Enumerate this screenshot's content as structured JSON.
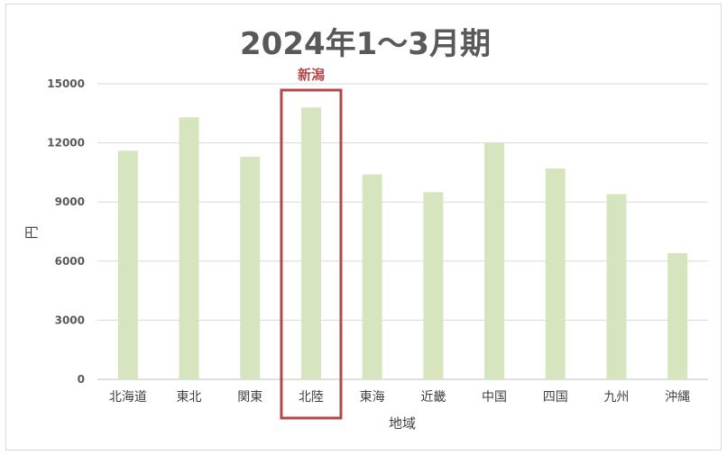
{
  "chart_data": {
    "type": "bar",
    "title": "2024年1～3月期",
    "xlabel": "地域",
    "ylabel": "円",
    "categories": [
      "北海道",
      "東北",
      "関東",
      "北陸",
      "東海",
      "近畿",
      "中国",
      "四国",
      "九州",
      "沖縄"
    ],
    "values": [
      11600,
      13300,
      11300,
      13800,
      10400,
      9500,
      12000,
      10700,
      9400,
      6400
    ],
    "ylim": [
      0,
      15000
    ],
    "yticks": [
      0,
      3000,
      6000,
      9000,
      12000,
      15000
    ],
    "grid": true,
    "bar_color": "#d6e5bd",
    "highlight": {
      "category_index": 3,
      "label": "新潟",
      "color": "#b34848"
    }
  }
}
